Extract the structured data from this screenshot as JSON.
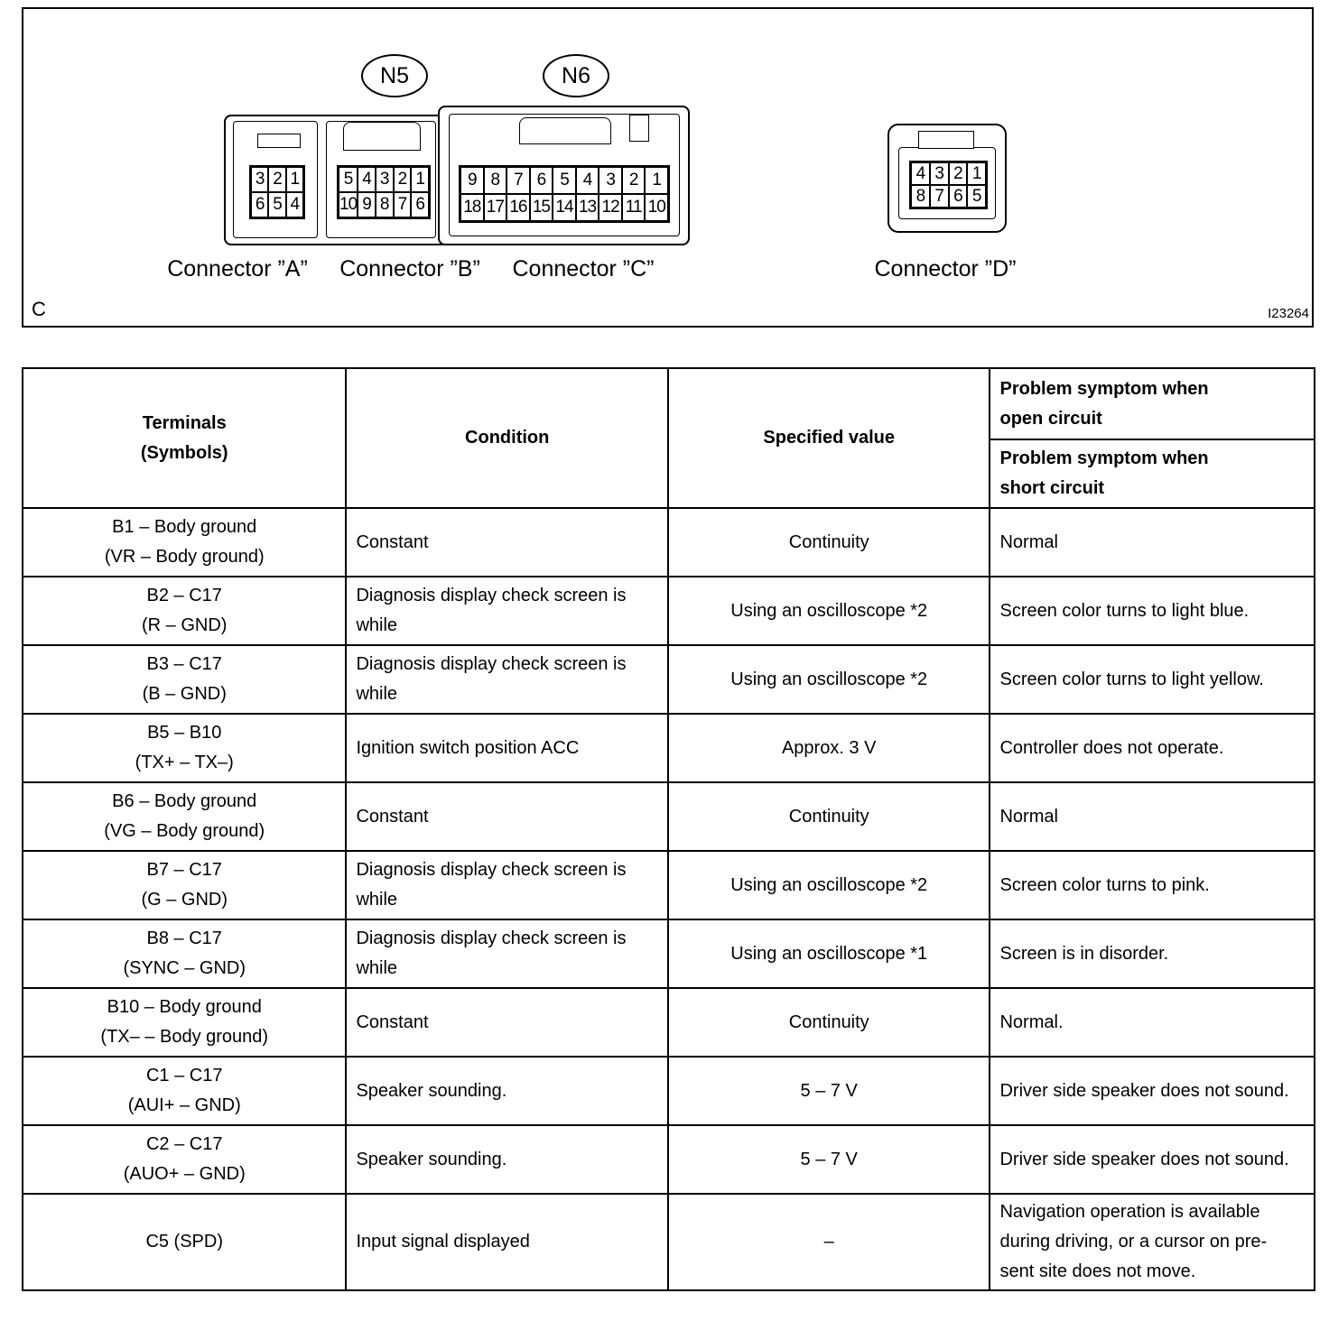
{
  "figure": {
    "corner_label": "C",
    "figure_id": "I23264",
    "connectors": [
      {
        "label": "Connector ”A”",
        "code": "",
        "pins": [
          [
            "3",
            "2",
            "1"
          ],
          [
            "6",
            "5",
            "4"
          ]
        ]
      },
      {
        "label": "Connector ”B”",
        "code": "N5",
        "pins": [
          [
            "5",
            "4",
            "3",
            "2",
            "1"
          ],
          [
            "10",
            "9",
            "8",
            "7",
            "6"
          ]
        ]
      },
      {
        "label": "Connector ”C”",
        "code": "N6",
        "pins": [
          [
            "9",
            "8",
            "7",
            "6",
            "5",
            "4",
            "3",
            "2",
            "1"
          ],
          [
            "18",
            "17",
            "16",
            "15",
            "14",
            "13",
            "12",
            "11",
            "10"
          ]
        ]
      },
      {
        "label": "Connector ”D”",
        "code": "",
        "pins": [
          [
            "4",
            "3",
            "2",
            "1"
          ],
          [
            "8",
            "7",
            "6",
            "5"
          ]
        ]
      }
    ]
  },
  "table": {
    "headers": {
      "terminals": [
        "Terminals",
        "(Symbols)"
      ],
      "condition": "Condition",
      "specified": "Specified value",
      "open": [
        "Problem symptom when",
        "open circuit"
      ],
      "short": [
        "Problem symptom when",
        "short circuit"
      ]
    },
    "rows": [
      {
        "terminal": "B1 – Body ground",
        "symbol": "(VR – Body ground)",
        "condition": "Constant",
        "value": "Continuity",
        "symptom": "Normal"
      },
      {
        "terminal": "B2 – C17",
        "symbol": "(R – GND)",
        "condition": "Diagnosis display check screen is while",
        "value": "Using an oscilloscope *2",
        "symptom": "Screen color turns to light blue."
      },
      {
        "terminal": "B3 – C17",
        "symbol": "(B – GND)",
        "condition": "Diagnosis display check screen is while",
        "value": "Using an oscilloscope *2",
        "symptom": "Screen color turns  to light yellow."
      },
      {
        "terminal": "B5 – B10",
        "symbol": "(TX+ – TX–)",
        "condition": "Ignition switch position ACC",
        "value": "Approx. 3 V",
        "symptom": "Controller does not operate."
      },
      {
        "terminal": "B6 – Body ground",
        "symbol": "(VG – Body ground)",
        "condition": "Constant",
        "value": "Continuity",
        "symptom": "Normal"
      },
      {
        "terminal": "B7 – C17",
        "symbol": "(G – GND)",
        "condition": "Diagnosis display check screen is while",
        "value": "Using an oscilloscope *2",
        "symptom": "Screen color turns to pink."
      },
      {
        "terminal": "B8 – C17",
        "symbol": "(SYNC – GND)",
        "condition": "Diagnosis display check screen is while",
        "value": "Using an oscilloscope *1",
        "symptom": "Screen is in disorder."
      },
      {
        "terminal": "B10 – Body ground",
        "symbol": "(TX– – Body ground)",
        "condition": "Constant",
        "value": "Continuity",
        "symptom": "Normal."
      },
      {
        "terminal": "C1 – C17",
        "symbol": "(AUI+ – GND)",
        "condition": "Speaker sounding.",
        "value": "5 – 7 V",
        "symptom": "Driver side speaker does not sound."
      },
      {
        "terminal": "C2 – C17",
        "symbol": "(AUO+ – GND)",
        "condition": "Speaker sounding.",
        "value": "5 – 7 V",
        "symptom": "Driver side speaker does not sound."
      },
      {
        "terminal": "C5 (SPD)",
        "symbol": "",
        "condition": "Input signal displayed",
        "value": "–",
        "symptom": "Navigation operation is available during driving, or a cursor on pre- sent site does not move."
      }
    ]
  }
}
